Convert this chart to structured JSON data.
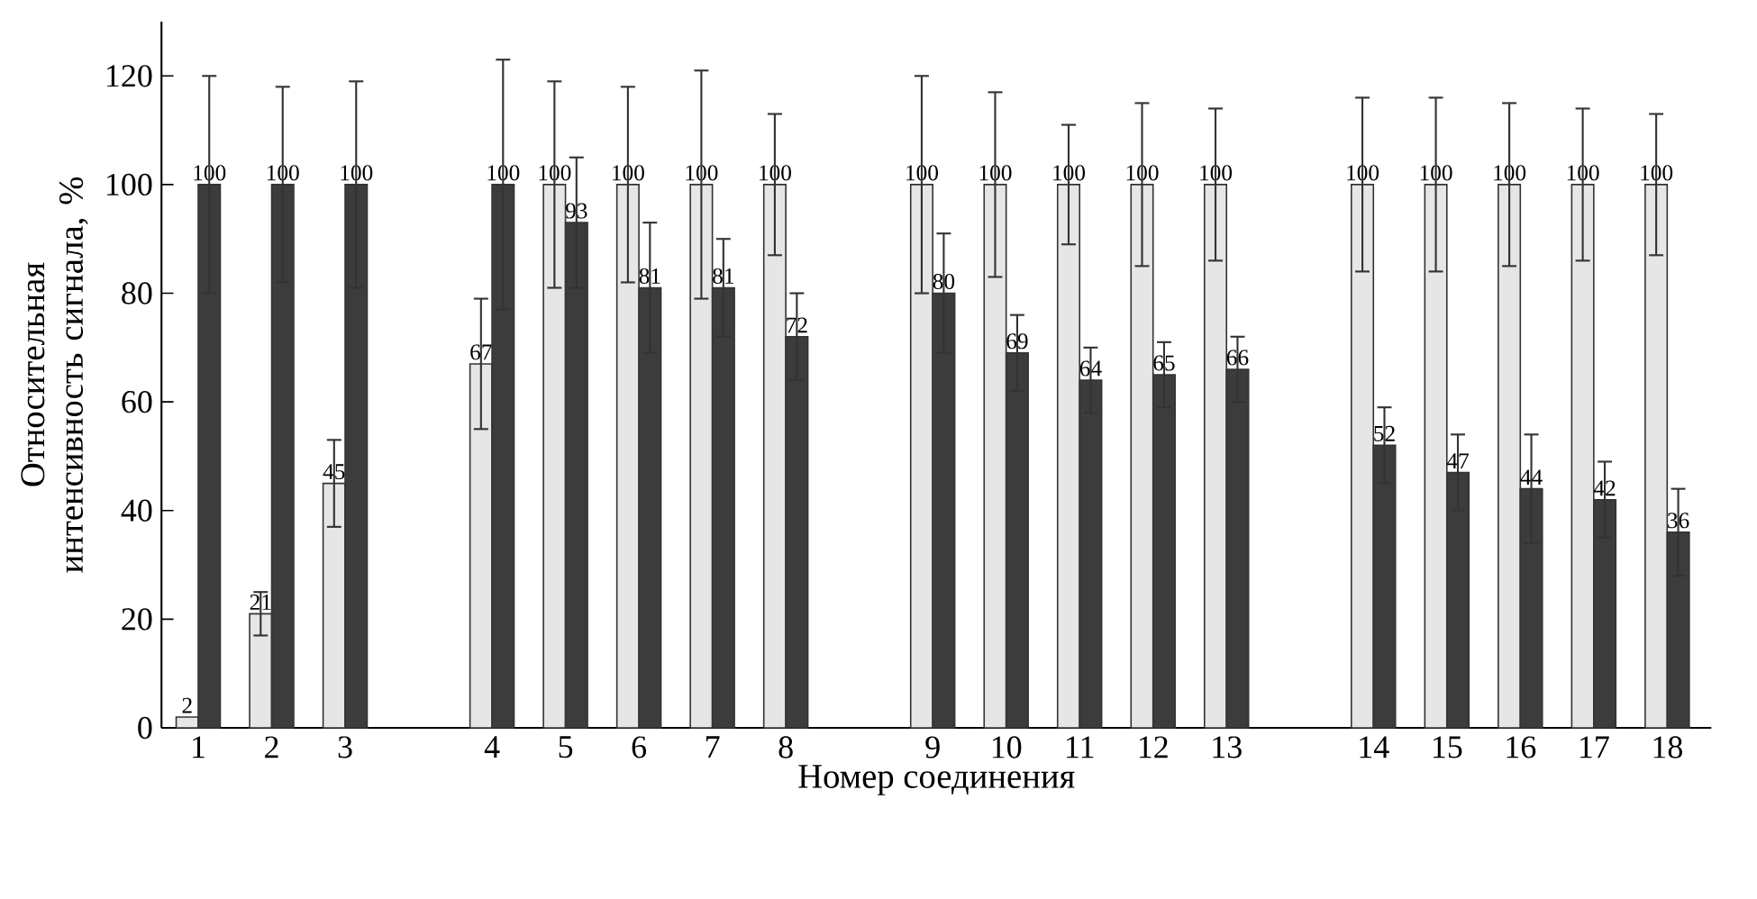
{
  "chart_data": {
    "type": "bar",
    "xlabel": "Номер соединения",
    "ylabel": "Относительная интенсивность сигнала, %",
    "categories": [
      "1",
      "2",
      "3",
      null,
      "4",
      "5",
      "6",
      "7",
      "8",
      null,
      "9",
      "10",
      "11",
      "12",
      "13",
      null,
      "14",
      "15",
      "16",
      "17",
      "18"
    ],
    "series": [
      {
        "color": "#e6e6e6",
        "values": [
          2,
          21,
          45,
          null,
          67,
          100,
          100,
          100,
          100,
          null,
          100,
          100,
          100,
          100,
          100,
          null,
          100,
          100,
          100,
          100,
          100
        ],
        "errors": [
          null,
          4,
          8,
          null,
          12,
          19,
          18,
          21,
          13,
          null,
          20,
          17,
          11,
          15,
          14,
          null,
          16,
          16,
          15,
          14,
          13
        ]
      },
      {
        "color": "#3c3c3c",
        "values": [
          100,
          100,
          100,
          null,
          100,
          93,
          81,
          81,
          72,
          null,
          80,
          69,
          64,
          65,
          66,
          null,
          52,
          47,
          44,
          42,
          36
        ],
        "errors": [
          20,
          18,
          19,
          null,
          23,
          12,
          12,
          9,
          8,
          null,
          11,
          7,
          6,
          6,
          6,
          null,
          7,
          7,
          10,
          7,
          8
        ]
      }
    ],
    "ylim": [
      0,
      130
    ],
    "yticks": [
      0,
      20,
      40,
      60,
      80,
      100,
      120
    ],
    "data_labels": true
  }
}
